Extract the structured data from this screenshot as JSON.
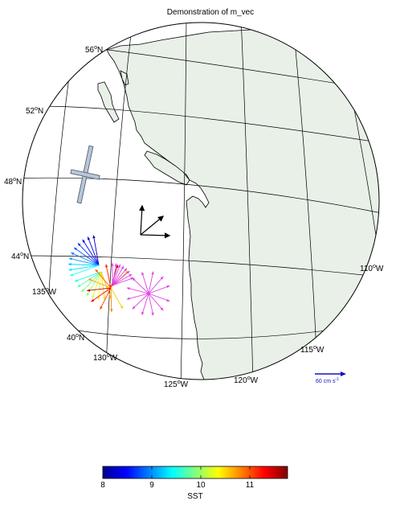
{
  "figure": {
    "title": "Demonstration of m_vec"
  },
  "map": {
    "projection": "orthographic",
    "ocean_color": "#ffffff",
    "land_color": "#e8f0e8",
    "lat_labels": [
      {
        "text": "56",
        "suffix": "N",
        "lat": 56
      },
      {
        "text": "52",
        "suffix": "N",
        "lat": 52
      },
      {
        "text": "48",
        "suffix": "N",
        "lat": 48
      },
      {
        "text": "44",
        "suffix": "N",
        "lat": 44
      },
      {
        "text": "40",
        "suffix": "N",
        "lat": 40
      }
    ],
    "lon_labels": [
      {
        "text": "135",
        "suffix": "W",
        "lon": -135
      },
      {
        "text": "130",
        "suffix": "W",
        "lon": -130
      },
      {
        "text": "125",
        "suffix": "W",
        "lon": -125
      },
      {
        "text": "120",
        "suffix": "W",
        "lon": -120
      },
      {
        "text": "115",
        "suffix": "W",
        "lon": -115
      },
      {
        "text": "110",
        "suffix": "W",
        "lon": -110
      }
    ],
    "degree_symbol": "o"
  },
  "scale_vector": {
    "label": "60 cm s",
    "superscript": "-1",
    "color": "#1010c0"
  },
  "colorbar": {
    "label": "SST",
    "min": 8,
    "max": 12,
    "ticks": [
      "8",
      "9",
      "10",
      "11"
    ],
    "colormap": "jet"
  },
  "colors": {
    "axis": "#000000",
    "ellipse_fill": "#b8c6d8",
    "ellipse_stroke": "#445566",
    "magenta": "#e040e0"
  }
}
